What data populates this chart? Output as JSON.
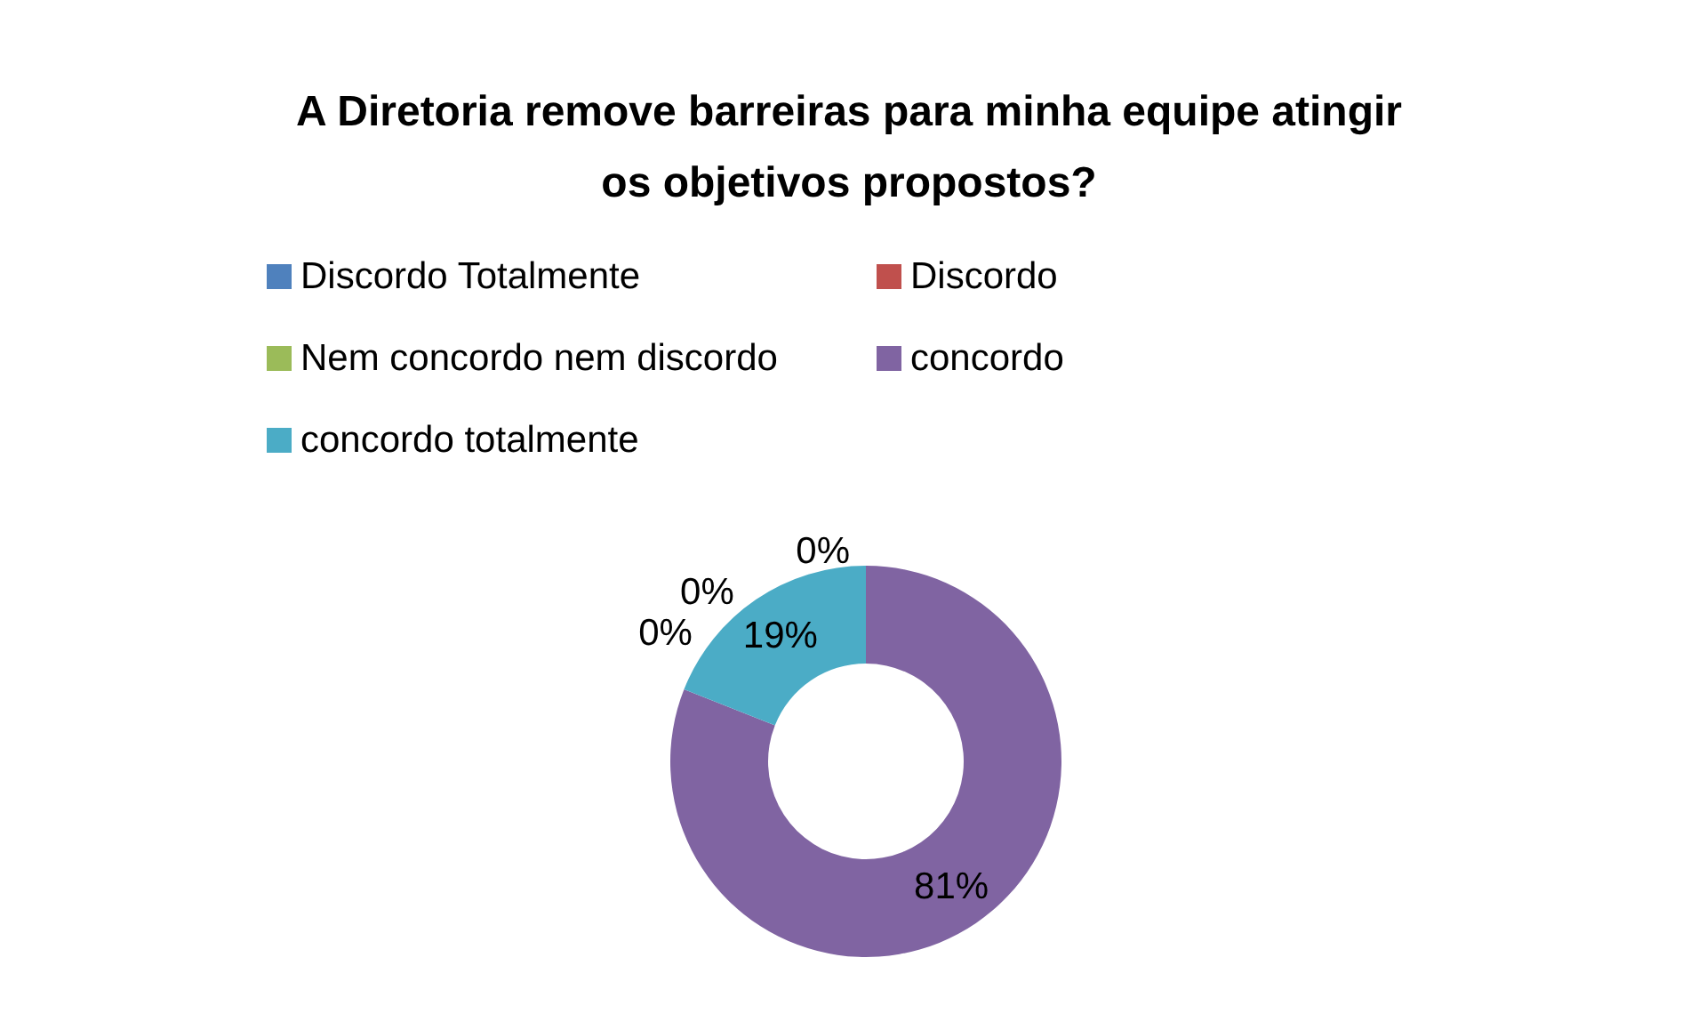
{
  "chart_data": {
    "type": "donut",
    "title": "A Diretoria remove barreiras para minha equipe atingir\nos objetivos propostos?",
    "categories": [
      "Discordo Totalmente",
      "Discordo",
      "Nem concordo nem discordo",
      "concordo",
      "concordo totalmente"
    ],
    "values": [
      0,
      0,
      0,
      81,
      19
    ],
    "colors": [
      "#4f81bd",
      "#c0504d",
      "#9bbb59",
      "#8064a2",
      "#4bacc6"
    ],
    "value_labels": [
      "0%",
      "0%",
      "0%",
      "81%",
      "19%"
    ],
    "legend": "top"
  }
}
